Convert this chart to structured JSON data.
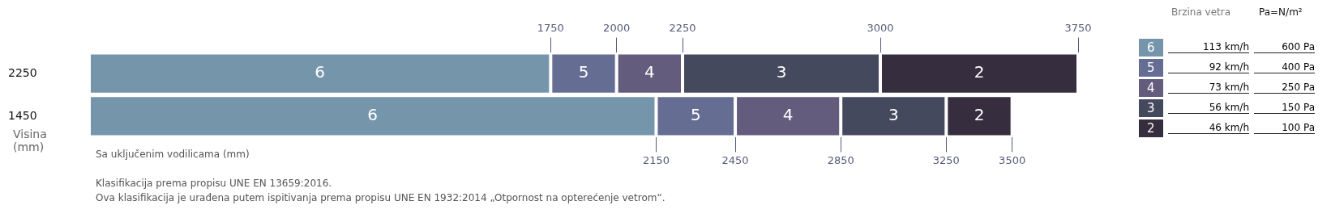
{
  "chart_data": {
    "type": "bar",
    "orientation": "horizontal",
    "stacked": true,
    "categories": [
      "2250",
      "1450"
    ],
    "series": [
      {
        "name": "6",
        "color": "#7595ab",
        "values": [
          1750,
          2150
        ]
      },
      {
        "name": "5",
        "color": "#666d93",
        "values": [
          250,
          300
        ]
      },
      {
        "name": "4",
        "color": "#635c7c",
        "values": [
          250,
          400
        ]
      },
      {
        "name": "3",
        "color": "#45495e",
        "values": [
          750,
          400
        ]
      },
      {
        "name": "2",
        "color": "#362d3e",
        "values": [
          750,
          250
        ]
      }
    ],
    "xlim": [
      0,
      3750
    ],
    "xticks": [
      2150,
      2450,
      2850,
      3250,
      3500
    ],
    "x2lim": [
      0,
      3750
    ],
    "x2ticks": [
      1750,
      2000,
      2250,
      3000,
      3750
    ],
    "xlabel": "Sa uključenim vodilicama (mm)",
    "ylabel": "Visina (mm)",
    "grid": false,
    "legend": "right",
    "legend_title": "Brzina vetra",
    "annotations": [
      "Klasifikacija prema propisu UNE EN 13659:2016.",
      "Ova klasifikacija je urađena putem ispitivanja prema propisu UNE EN 1932:2014 „Otpornost na opterećenje vetrom“.",
      "Pa=N/m²",
      "113 km/h",
      "600 Pa",
      "92 km/h",
      "400 Pa",
      "73 km/h",
      "250 Pa",
      "56 km/h",
      "150 Pa",
      "46 km/h",
      "100 Pa"
    ]
  }
}
